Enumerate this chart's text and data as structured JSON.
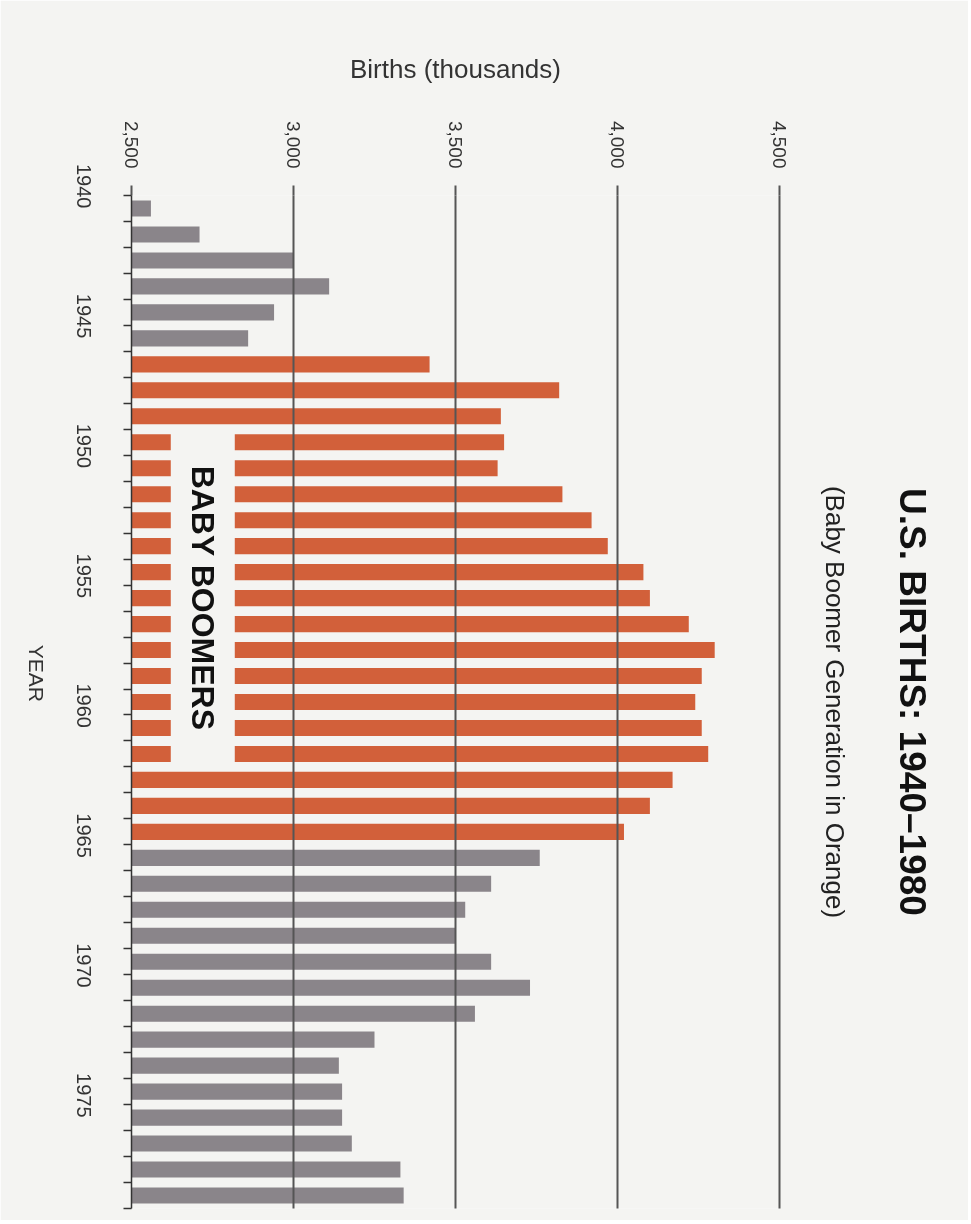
{
  "chart_data": {
    "type": "bar",
    "orientation": "horizontal",
    "title": "U.S. BIRTHS: 1940–1980",
    "subtitle": "(Baby Boomer Generation in Orange)",
    "xlabel": "Births (thousands)",
    "ylabel": "YEAR",
    "categories": [
      "1940",
      null,
      null,
      null,
      null,
      "1945",
      null,
      null,
      null,
      null,
      "1950",
      null,
      null,
      null,
      null,
      "1955",
      null,
      null,
      null,
      null,
      "1960",
      null,
      null,
      null,
      null,
      "1965",
      null,
      null,
      null,
      null,
      "1970",
      null,
      null,
      null,
      null,
      "1975",
      null,
      null,
      null
    ],
    "values": [
      2560,
      2710,
      3000,
      3110,
      2940,
      2860,
      3420,
      3820,
      3640,
      3650,
      3630,
      3830,
      3920,
      3970,
      4080,
      4100,
      4220,
      4300,
      4260,
      4240,
      4260,
      4280,
      4170,
      4100,
      4020,
      3760,
      3610,
      3530,
      3500,
      3610,
      3730,
      3560,
      3250,
      3140,
      3150,
      3150,
      3180,
      3330,
      3340
    ],
    "colors": [
      "#8a858a",
      "#8a858a",
      "#8a858a",
      "#8a858a",
      "#8a858a",
      "#8a858a",
      "#d2603a",
      "#d2603a",
      "#d2603a",
      "#d2603a",
      "#d2603a",
      "#d2603a",
      "#d2603a",
      "#d2603a",
      "#d2603a",
      "#d2603a",
      "#d2603a",
      "#d2603a",
      "#d2603a",
      "#d2603a",
      "#d2603a",
      "#d2603a",
      "#d2603a",
      "#d2603a",
      "#d2603a",
      "#8a858a",
      "#8a858a",
      "#8a858a",
      "#8a858a",
      "#8a858a",
      "#8a858a",
      "#8a858a",
      "#8a858a",
      "#8a858a",
      "#8a858a",
      "#8a858a",
      "#8a858a",
      "#8a858a",
      "#8a858a"
    ],
    "xlim": [
      2500,
      4500
    ],
    "xticks": [
      {
        "value": 2500,
        "label": "2,500"
      },
      {
        "value": 3000,
        "label": "3,000"
      },
      {
        "value": 3500,
        "label": "3,500"
      },
      {
        "value": 4000,
        "label": "4,000"
      },
      {
        "value": 4500,
        "label": "4,500"
      }
    ],
    "grid": "x",
    "annotations": [
      {
        "text": "BABY BOOMERS",
        "x": 2720,
        "y": "1955"
      }
    ]
  }
}
